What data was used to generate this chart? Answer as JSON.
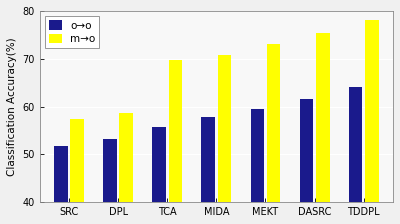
{
  "categories": [
    "SRC",
    "DPL",
    "TCA",
    "MIDA",
    "MEKT",
    "DASRC",
    "TDDPL"
  ],
  "oto_values": [
    51.7,
    53.2,
    55.7,
    57.8,
    59.5,
    61.5,
    64.0
  ],
  "mto_values": [
    57.5,
    58.6,
    69.7,
    70.7,
    73.0,
    75.3,
    78.2
  ],
  "oto_color": "#1a1a8c",
  "mto_color": "#ffff00",
  "bar_width": 0.28,
  "bar_gap": 0.05,
  "ylim": [
    40,
    80
  ],
  "yticks": [
    40,
    50,
    60,
    70,
    80
  ],
  "ylabel": "Classification Accuracy(%)",
  "legend_labels": [
    "o→o",
    "m→o"
  ],
  "background_color": "#f0f0f0",
  "plot_bg_color": "#f8f8f8",
  "axis_fontsize": 7.5,
  "tick_fontsize": 7,
  "legend_fontsize": 7.5
}
